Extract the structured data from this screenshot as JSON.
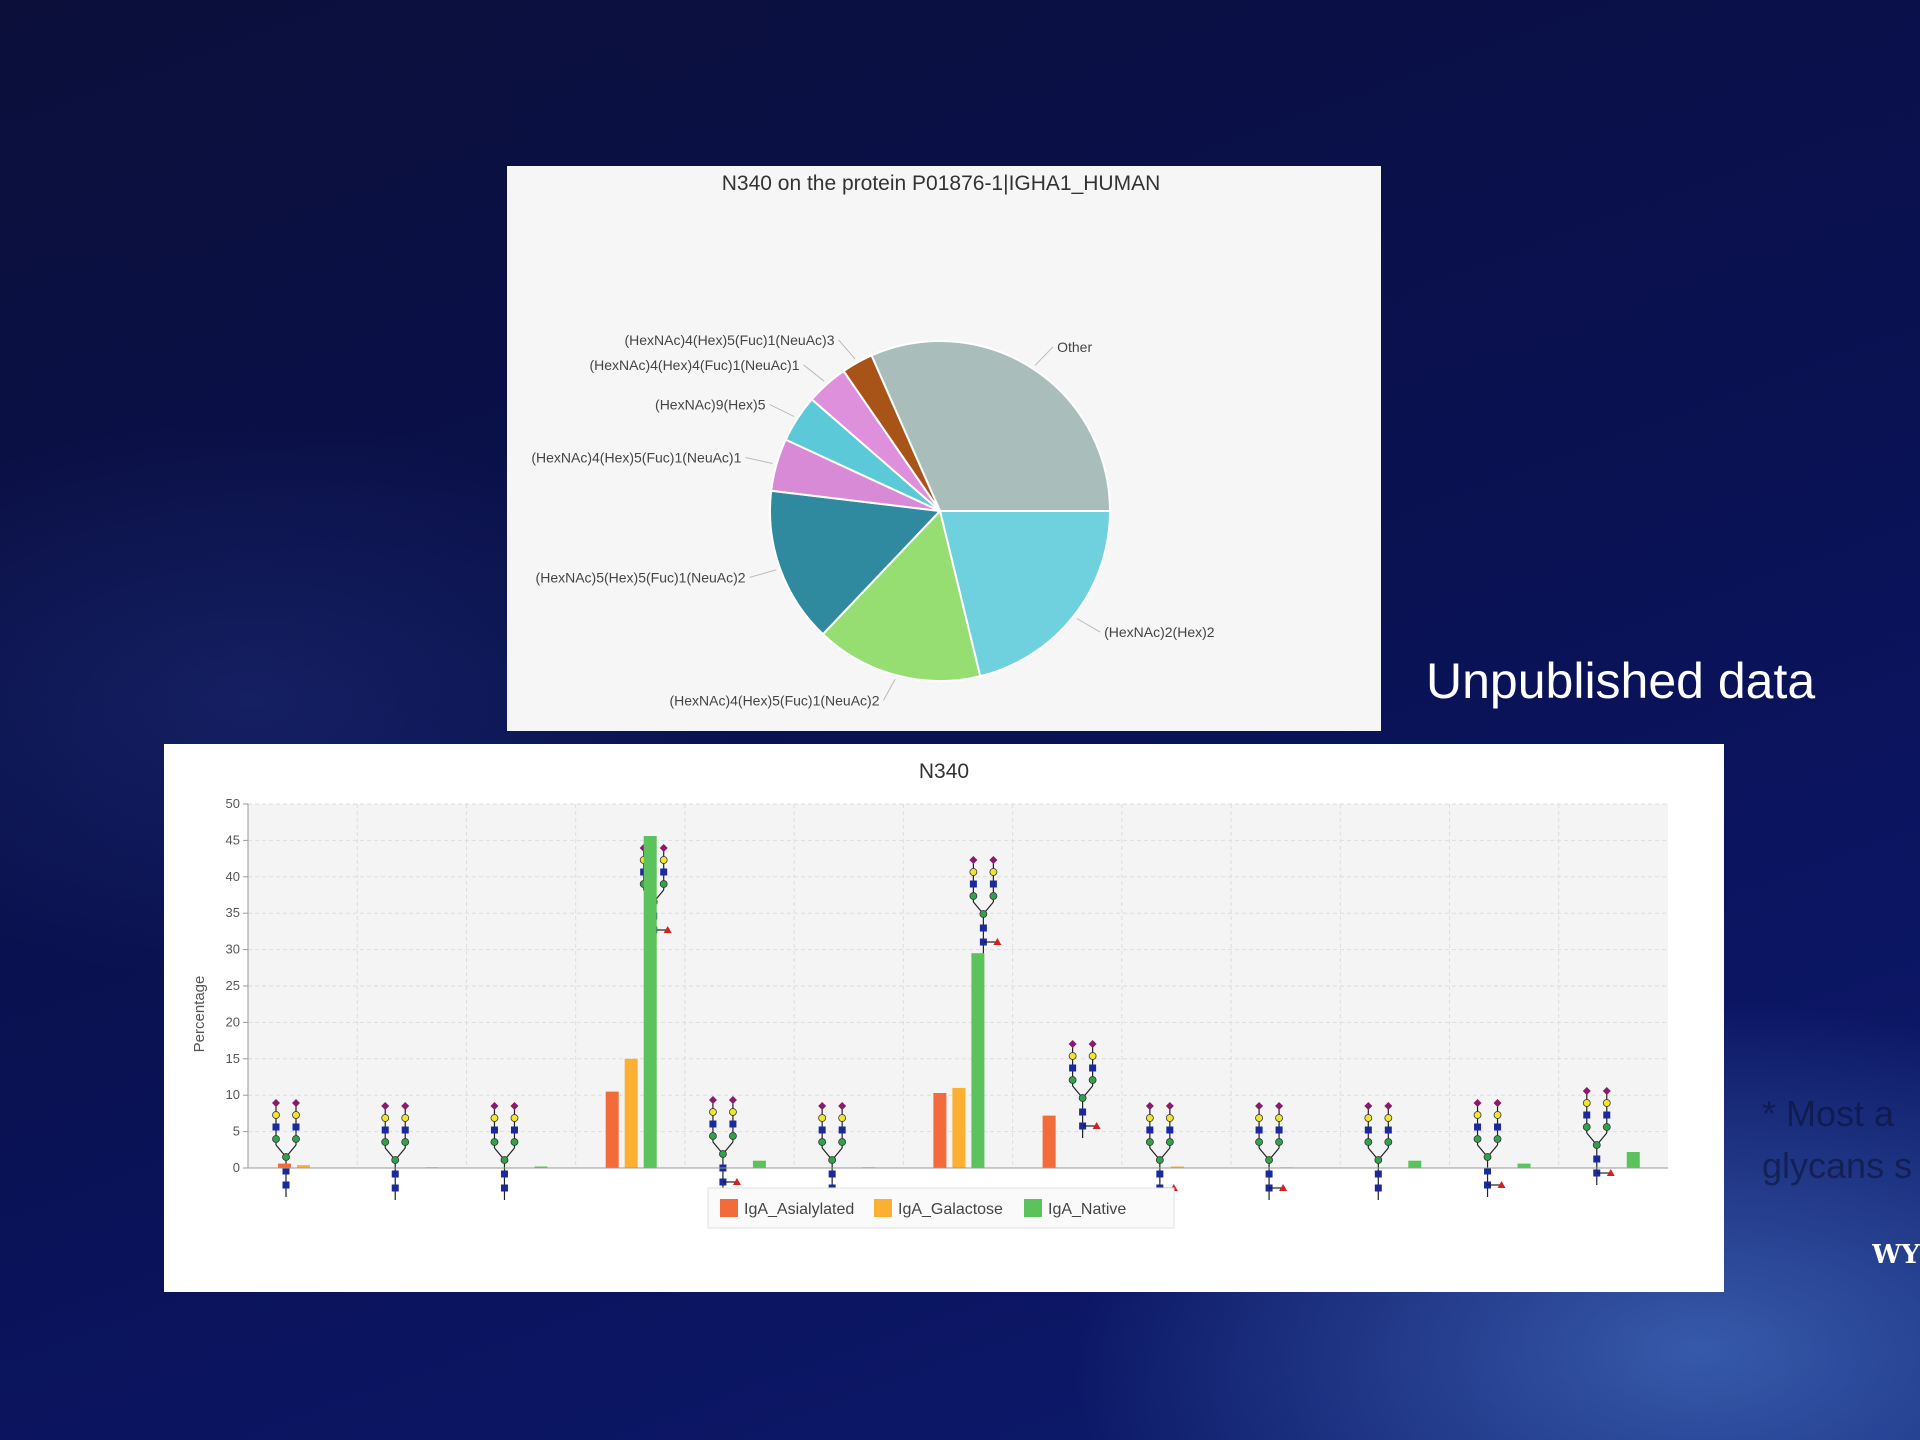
{
  "slide": {
    "heading": "Unpublished data",
    "note_partial": [
      "* Most a",
      "glycans s"
    ],
    "logo_partial": "WY"
  },
  "chart_data": [
    {
      "type": "pie",
      "title": "N340 on the protein P01876-1|IGHA1_HUMAN",
      "slices": [
        {
          "label": "Other",
          "value": 31.6,
          "color": "#a9bdbb"
        },
        {
          "label": "(HexNAc)2(Hex)2",
          "value": 21.2,
          "color": "#6fd0de"
        },
        {
          "label": "(HexNAc)4(Hex)5(Fuc)1(NeuAc)2",
          "value": 15.9,
          "color": "#96dd72"
        },
        {
          "label": "(HexNAc)5(Hex)5(Fuc)1(NeuAc)2",
          "value": 14.8,
          "color": "#2f8aa0"
        },
        {
          "label": "(HexNAc)4(Hex)5(Fuc)1(NeuAc)1",
          "value": 5.0,
          "color": "#d98ad6"
        },
        {
          "label": "(HexNAc)9(Hex)5",
          "value": 4.5,
          "color": "#5bc9d8"
        },
        {
          "label": "(HexNAc)4(Hex)4(Fuc)1(NeuAc)1",
          "value": 4.0,
          "color": "#de90dc"
        },
        {
          "label": "(HexNAc)4(Hex)5(Fuc)1(NeuAc)3",
          "value": 3.0,
          "color": "#a85418"
        }
      ]
    },
    {
      "type": "bar",
      "title": "N340",
      "xlabel": "",
      "ylabel": "Percentage",
      "ylim": [
        0,
        50
      ],
      "yticks": [
        0,
        5,
        10,
        15,
        20,
        25,
        30,
        35,
        40,
        45,
        50
      ],
      "grid": true,
      "legend_position": "bottom",
      "category_count": 13,
      "series": [
        {
          "name": "IgA_Asialylated",
          "color": "#f26b3a",
          "values": [
            0.6,
            0,
            0,
            10.5,
            0,
            0,
            10.3,
            7.2,
            0,
            0,
            0,
            0,
            0
          ]
        },
        {
          "name": "IgA_Galactose",
          "color": "#fbb034",
          "values": [
            0.4,
            0,
            0,
            15.0,
            0,
            0,
            11.0,
            0,
            0.2,
            0.1,
            0,
            0,
            0
          ]
        },
        {
          "name": "IgA_Native",
          "color": "#5cc35c",
          "values": [
            0,
            0.1,
            0.2,
            45.6,
            1.0,
            0.1,
            29.5,
            0,
            0,
            0,
            1.0,
            0.6,
            2.2
          ]
        }
      ]
    }
  ]
}
